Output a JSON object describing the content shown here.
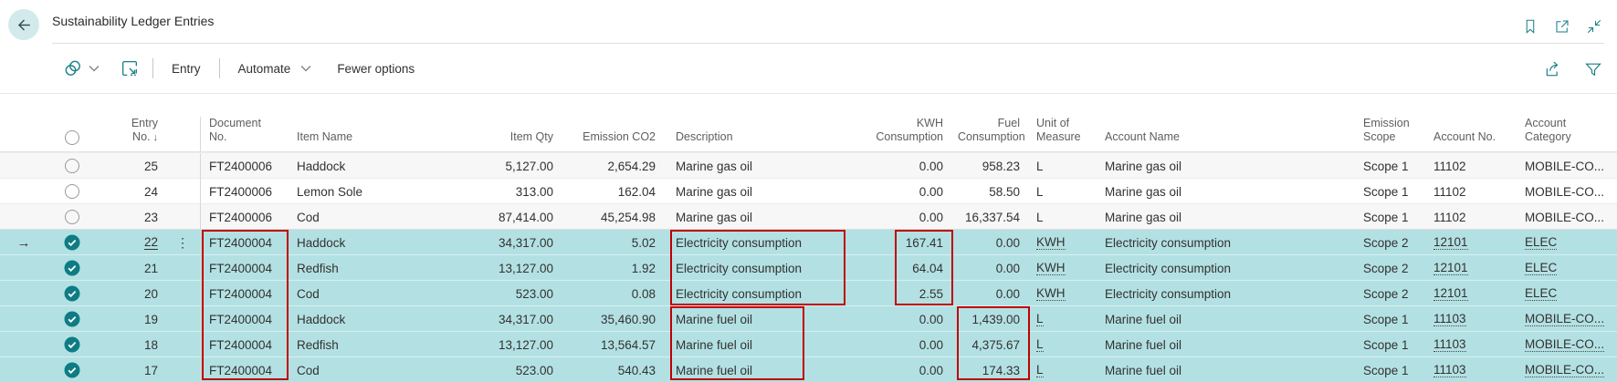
{
  "page": {
    "title": "Sustainability Ledger Entries"
  },
  "titlebar": {
    "icons": [
      "back-arrow",
      "bookmark",
      "open-in-new-window",
      "collapse-window"
    ]
  },
  "toolbar": {
    "entry_label": "Entry",
    "automate_label": "Automate",
    "fewer_options_label": "Fewer options",
    "left_icons": [
      "views-icon",
      "analyze-icon"
    ],
    "right_icons": [
      "share-icon",
      "filter-icon"
    ]
  },
  "colors": {
    "accent_teal": "#1a7f87",
    "selection_bg": "#b3e1e3",
    "checkbox_teal": "#0e7c84",
    "annotation_red": "#c00000"
  },
  "table": {
    "sort": {
      "column": "Entry No.",
      "direction": "descending"
    },
    "columns": [
      {
        "id": "entry_no",
        "label": "Entry No.",
        "align": "right",
        "sorted": true
      },
      {
        "id": "document_no",
        "label": "Document\nNo.",
        "align": "left"
      },
      {
        "id": "item_name",
        "label": "Item Name",
        "align": "left"
      },
      {
        "id": "item_qty",
        "label": "Item Qty",
        "align": "right"
      },
      {
        "id": "emission_co2",
        "label": "Emission CO2",
        "align": "right"
      },
      {
        "id": "description",
        "label": "Description",
        "align": "left"
      },
      {
        "id": "kwh_consumption",
        "label": "KWH\nConsumption",
        "align": "right"
      },
      {
        "id": "fuel_consumption",
        "label": "Fuel\nConsumption",
        "align": "right"
      },
      {
        "id": "unit_of_measure",
        "label": "Unit of\nMeasure",
        "align": "left",
        "link": true
      },
      {
        "id": "account_name",
        "label": "Account Name",
        "align": "left"
      },
      {
        "id": "emission_scope",
        "label": "Emission\nScope",
        "align": "left"
      },
      {
        "id": "account_no",
        "label": "Account No.",
        "align": "left",
        "link": true
      },
      {
        "id": "account_category",
        "label": "Account\nCategory",
        "align": "left",
        "link": true
      }
    ],
    "rows": [
      {
        "entry_no": "25",
        "document_no": "FT2400006",
        "item_name": "Haddock",
        "item_qty": "5,127.00",
        "emission_co2": "2,654.29",
        "description": "Marine gas oil",
        "kwh_consumption": "0.00",
        "fuel_consumption": "958.23",
        "unit_of_measure": "L",
        "account_name": "Marine gas oil",
        "emission_scope": "Scope 1",
        "account_no": "11102",
        "account_category": "MOBILE-CO...",
        "selected": false,
        "current": false
      },
      {
        "entry_no": "24",
        "document_no": "FT2400006",
        "item_name": "Lemon Sole",
        "item_qty": "313.00",
        "emission_co2": "162.04",
        "description": "Marine gas oil",
        "kwh_consumption": "0.00",
        "fuel_consumption": "58.50",
        "unit_of_measure": "L",
        "account_name": "Marine gas oil",
        "emission_scope": "Scope 1",
        "account_no": "11102",
        "account_category": "MOBILE-CO...",
        "selected": false,
        "current": false
      },
      {
        "entry_no": "23",
        "document_no": "FT2400006",
        "item_name": "Cod",
        "item_qty": "87,414.00",
        "emission_co2": "45,254.98",
        "description": "Marine gas oil",
        "kwh_consumption": "0.00",
        "fuel_consumption": "16,337.54",
        "unit_of_measure": "L",
        "account_name": "Marine gas oil",
        "emission_scope": "Scope 1",
        "account_no": "11102",
        "account_category": "MOBILE-CO...",
        "selected": false,
        "current": false
      },
      {
        "entry_no": "22",
        "document_no": "FT2400004",
        "item_name": "Haddock",
        "item_qty": "34,317.00",
        "emission_co2": "5.02",
        "description": "Electricity consumption",
        "kwh_consumption": "167.41",
        "fuel_consumption": "0.00",
        "unit_of_measure": "KWH",
        "account_name": "Electricity consumption",
        "emission_scope": "Scope 2",
        "account_no": "12101",
        "account_category": "ELEC",
        "selected": true,
        "current": true
      },
      {
        "entry_no": "21",
        "document_no": "FT2400004",
        "item_name": "Redfish",
        "item_qty": "13,127.00",
        "emission_co2": "1.92",
        "description": "Electricity consumption",
        "kwh_consumption": "64.04",
        "fuel_consumption": "0.00",
        "unit_of_measure": "KWH",
        "account_name": "Electricity consumption",
        "emission_scope": "Scope 2",
        "account_no": "12101",
        "account_category": "ELEC",
        "selected": true,
        "current": false
      },
      {
        "entry_no": "20",
        "document_no": "FT2400004",
        "item_name": "Cod",
        "item_qty": "523.00",
        "emission_co2": "0.08",
        "description": "Electricity consumption",
        "kwh_consumption": "2.55",
        "fuel_consumption": "0.00",
        "unit_of_measure": "KWH",
        "account_name": "Electricity consumption",
        "emission_scope": "Scope 2",
        "account_no": "12101",
        "account_category": "ELEC",
        "selected": true,
        "current": false
      },
      {
        "entry_no": "19",
        "document_no": "FT2400004",
        "item_name": "Haddock",
        "item_qty": "34,317.00",
        "emission_co2": "35,460.90",
        "description": "Marine fuel oil",
        "kwh_consumption": "0.00",
        "fuel_consumption": "1,439.00",
        "unit_of_measure": "L",
        "account_name": "Marine fuel oil",
        "emission_scope": "Scope 1",
        "account_no": "11103",
        "account_category": "MOBILE-CO...",
        "selected": true,
        "current": false
      },
      {
        "entry_no": "18",
        "document_no": "FT2400004",
        "item_name": "Redfish",
        "item_qty": "13,127.00",
        "emission_co2": "13,564.57",
        "description": "Marine fuel oil",
        "kwh_consumption": "0.00",
        "fuel_consumption": "4,375.67",
        "unit_of_measure": "L",
        "account_name": "Marine fuel oil",
        "emission_scope": "Scope 1",
        "account_no": "11103",
        "account_category": "MOBILE-CO...",
        "selected": true,
        "current": false
      },
      {
        "entry_no": "17",
        "document_no": "FT2400004",
        "item_name": "Cod",
        "item_qty": "523.00",
        "emission_co2": "540.43",
        "description": "Marine fuel oil",
        "kwh_consumption": "0.00",
        "fuel_consumption": "174.33",
        "unit_of_measure": "L",
        "account_name": "Marine fuel oil",
        "emission_scope": "Scope 1",
        "account_no": "11103",
        "account_category": "MOBILE-CO...",
        "selected": true,
        "current": false
      }
    ]
  },
  "annotations": {
    "color": "#c00000",
    "boxes": [
      {
        "highlights": "document_no values FT2400004, entries 22-17"
      },
      {
        "highlights": "description Electricity consumption, entries 22-20"
      },
      {
        "highlights": "description Marine fuel oil, entries 19-17"
      },
      {
        "highlights": "kwh_consumption values 167.41 / 64.04 / 2.55, entries 22-20"
      },
      {
        "highlights": "fuel_consumption values 1,439.00 / 4,375.67 / 174.33, entries 19-17"
      }
    ]
  }
}
